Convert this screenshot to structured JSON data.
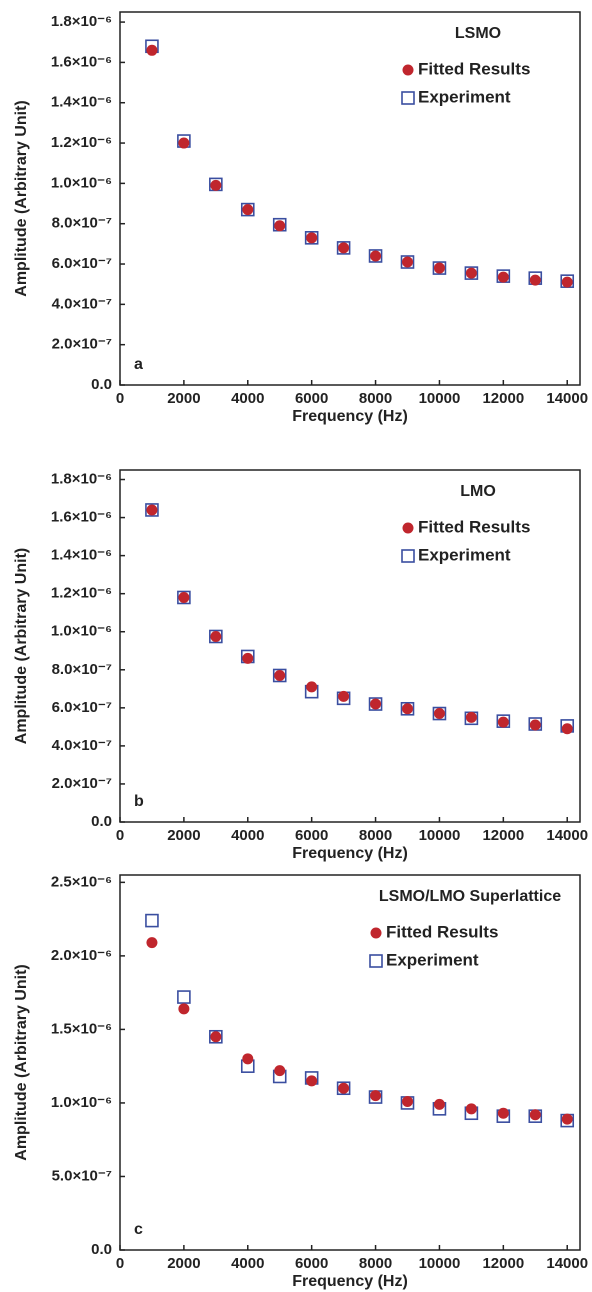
{
  "chart_data": [
    {
      "type": "scatter",
      "title": "LSMO",
      "panel_label": "a",
      "x_label": "Frequency (Hz)",
      "y_label": "Amplitude (Arbitrary Unit)",
      "x": [
        1000,
        2000,
        3000,
        4000,
        5000,
        6000,
        7000,
        8000,
        9000,
        10000,
        11000,
        12000,
        13000,
        14000
      ],
      "series": [
        {
          "name": "Fitted Results",
          "color": "#c0262d",
          "marker": "circle",
          "values": [
            1.66e-06,
            1.2e-06,
            9.9e-07,
            8.7e-07,
            7.9e-07,
            7.3e-07,
            6.8e-07,
            6.4e-07,
            6.1e-07,
            5.8e-07,
            5.55e-07,
            5.35e-07,
            5.2e-07,
            5.1e-07
          ]
        },
        {
          "name": "Experiment",
          "color": "#3a4ea0",
          "marker": "square",
          "values": [
            1.68e-06,
            1.21e-06,
            9.95e-07,
            8.7e-07,
            7.95e-07,
            7.3e-07,
            6.8e-07,
            6.4e-07,
            6.1e-07,
            5.8e-07,
            5.55e-07,
            5.4e-07,
            5.3e-07,
            5.15e-07
          ]
        }
      ],
      "xlim": [
        0,
        14400
      ],
      "ylim": [
        0,
        1.85e-06
      ],
      "xticks": [
        0,
        2000,
        4000,
        6000,
        8000,
        10000,
        12000,
        14000
      ],
      "yticks": [
        {
          "value": 0,
          "label": "0.0"
        },
        {
          "value": 2e-07,
          "label": "2.0×10⁻⁷"
        },
        {
          "value": 4e-07,
          "label": "4.0×10⁻⁷"
        },
        {
          "value": 6e-07,
          "label": "6.0×10⁻⁷"
        },
        {
          "value": 8e-07,
          "label": "8.0×10⁻⁷"
        },
        {
          "value": 1e-06,
          "label": "1.0×10⁻⁶"
        },
        {
          "value": 1.2e-06,
          "label": "1.2×10⁻⁶"
        },
        {
          "value": 1.4e-06,
          "label": "1.4×10⁻⁶"
        },
        {
          "value": 1.6e-06,
          "label": "1.6×10⁻⁶"
        },
        {
          "value": 1.8e-06,
          "label": "1.8×10⁻⁶"
        }
      ]
    },
    {
      "type": "scatter",
      "title": "LMO",
      "panel_label": "b",
      "x_label": "Frequency (Hz)",
      "y_label": "Amplitude (Arbitrary Unit)",
      "x": [
        1000,
        2000,
        3000,
        4000,
        5000,
        6000,
        7000,
        8000,
        9000,
        10000,
        11000,
        12000,
        13000,
        14000
      ],
      "series": [
        {
          "name": "Fitted Results",
          "color": "#c0262d",
          "marker": "circle",
          "values": [
            1.64e-06,
            1.18e-06,
            9.75e-07,
            8.6e-07,
            7.7e-07,
            7.1e-07,
            6.6e-07,
            6.2e-07,
            5.95e-07,
            5.7e-07,
            5.5e-07,
            5.25e-07,
            5.1e-07,
            4.9e-07
          ]
        },
        {
          "name": "Experiment",
          "color": "#3a4ea0",
          "marker": "square",
          "values": [
            1.64e-06,
            1.18e-06,
            9.75e-07,
            8.7e-07,
            7.7e-07,
            6.85e-07,
            6.5e-07,
            6.2e-07,
            5.95e-07,
            5.7e-07,
            5.45e-07,
            5.3e-07,
            5.15e-07,
            5.05e-07
          ]
        }
      ],
      "xlim": [
        0,
        14400
      ],
      "ylim": [
        0,
        1.85e-06
      ],
      "xticks": [
        0,
        2000,
        4000,
        6000,
        8000,
        10000,
        12000,
        14000
      ],
      "yticks": [
        {
          "value": 0,
          "label": "0.0"
        },
        {
          "value": 2e-07,
          "label": "2.0×10⁻⁷"
        },
        {
          "value": 4e-07,
          "label": "4.0×10⁻⁷"
        },
        {
          "value": 6e-07,
          "label": "6.0×10⁻⁷"
        },
        {
          "value": 8e-07,
          "label": "8.0×10⁻⁷"
        },
        {
          "value": 1e-06,
          "label": "1.0×10⁻⁶"
        },
        {
          "value": 1.2e-06,
          "label": "1.2×10⁻⁶"
        },
        {
          "value": 1.4e-06,
          "label": "1.4×10⁻⁶"
        },
        {
          "value": 1.6e-06,
          "label": "1.6×10⁻⁶"
        },
        {
          "value": 1.8e-06,
          "label": "1.8×10⁻⁶"
        }
      ]
    },
    {
      "type": "scatter",
      "title": "LSMO/LMO Superlattice",
      "panel_label": "c",
      "x_label": "Frequency (Hz)",
      "y_label": "Amplitude (Arbitrary Unit)",
      "x": [
        1000,
        2000,
        3000,
        4000,
        5000,
        6000,
        7000,
        8000,
        9000,
        10000,
        11000,
        12000,
        13000,
        14000
      ],
      "series": [
        {
          "name": "Fitted Results",
          "color": "#c0262d",
          "marker": "circle",
          "values": [
            2.09e-06,
            1.64e-06,
            1.45e-06,
            1.3e-06,
            1.22e-06,
            1.15e-06,
            1.1e-06,
            1.05e-06,
            1.01e-06,
            9.9e-07,
            9.6e-07,
            9.3e-07,
            9.2e-07,
            8.9e-07
          ]
        },
        {
          "name": "Experiment",
          "color": "#3a4ea0",
          "marker": "square",
          "values": [
            2.24e-06,
            1.72e-06,
            1.45e-06,
            1.25e-06,
            1.18e-06,
            1.17e-06,
            1.1e-06,
            1.04e-06,
            1e-06,
            9.6e-07,
            9.3e-07,
            9.1e-07,
            9.1e-07,
            8.8e-07
          ]
        }
      ],
      "xlim": [
        0,
        14400
      ],
      "ylim": [
        0,
        2.55e-06
      ],
      "xticks": [
        0,
        2000,
        4000,
        6000,
        8000,
        10000,
        12000,
        14000
      ],
      "yticks": [
        {
          "value": 0,
          "label": "0.0"
        },
        {
          "value": 5e-07,
          "label": "5.0×10⁻⁷"
        },
        {
          "value": 1e-06,
          "label": "1.0×10⁻⁶"
        },
        {
          "value": 1.5e-06,
          "label": "1.5×10⁻⁶"
        },
        {
          "value": 2e-06,
          "label": "2.0×10⁻⁶"
        },
        {
          "value": 2.5e-06,
          "label": "2.5×10⁻⁶"
        }
      ]
    }
  ]
}
